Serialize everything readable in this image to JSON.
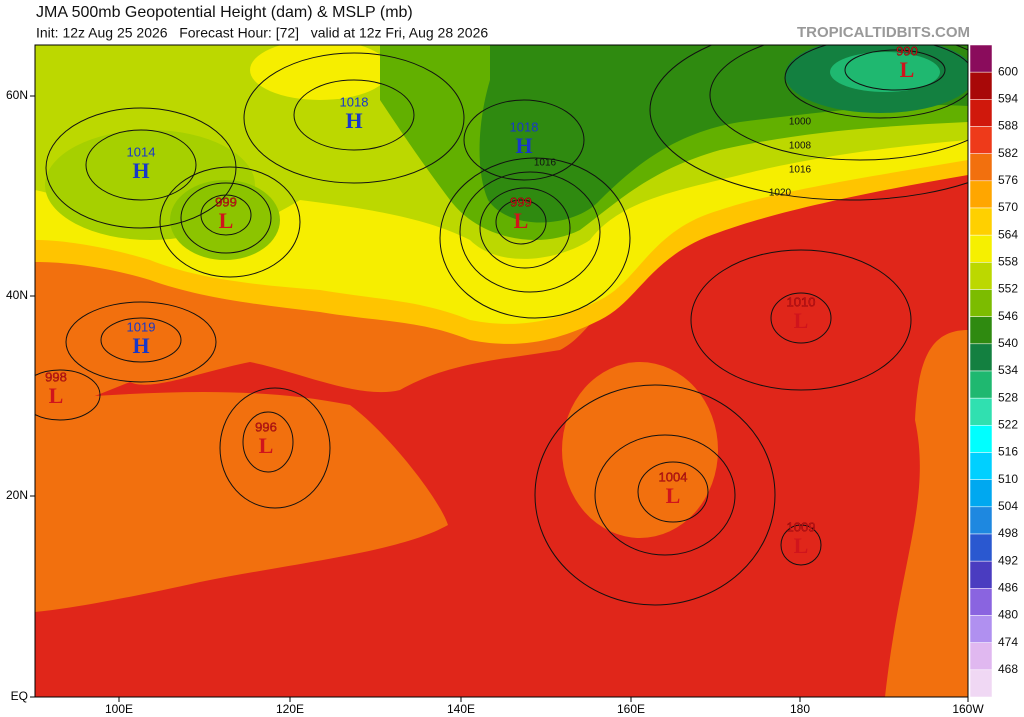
{
  "header": {
    "title": "JMA 500mb Geopotential Height (dam) & MSLP (mb)",
    "subtitle": "Init: 12z Aug 25 2026   Forecast Hour: [72]   valid at 12z Fri, Aug 28 2026",
    "source": "TROPICALTIDBITS.COM"
  },
  "map": {
    "lat_labels": [
      "60N",
      "40N",
      "20N",
      "EQ"
    ],
    "lon_labels": [
      "100E",
      "120E",
      "140E",
      "160E",
      "180",
      "160W"
    ],
    "centers": [
      {
        "symbol": "H",
        "pressure": 1018
      },
      {
        "symbol": "H",
        "pressure": 1014
      },
      {
        "symbol": "L",
        "pressure": 999
      },
      {
        "symbol": "H",
        "pressure": 1018
      },
      {
        "symbol": "L",
        "pressure": 999
      },
      {
        "symbol": "L",
        "pressure": 990
      },
      {
        "symbol": "H",
        "pressure": 1019
      },
      {
        "symbol": "L",
        "pressure": 998
      },
      {
        "symbol": "L",
        "pressure": 996
      },
      {
        "symbol": "L",
        "pressure": 1010
      },
      {
        "symbol": "L",
        "pressure": 1004
      },
      {
        "symbol": "L",
        "pressure": 1009
      }
    ],
    "contour_labels": [
      1000,
      1008,
      1016,
      1020,
      1016
    ]
  },
  "colorbar": {
    "labels": [
      600,
      594,
      588,
      582,
      576,
      570,
      564,
      558,
      552,
      546,
      540,
      534,
      528,
      522,
      516,
      510,
      504,
      498,
      492,
      486,
      480,
      474,
      468
    ],
    "colors": [
      "#8a0c5c",
      "#a80808",
      "#d0180c",
      "#ee3a1a",
      "#f2700e",
      "#ffa600",
      "#ffd000",
      "#f6f000",
      "#bcd800",
      "#7cbc00",
      "#2f8a10",
      "#138040",
      "#1fb870",
      "#30e0b0",
      "#00ffff",
      "#00d0ff",
      "#00a8f0",
      "#1e88e0",
      "#2a58d0",
      "#4a3cc0",
      "#8a64e0",
      "#b090f0",
      "#e0b8f0",
      "#f0d8f4"
    ]
  }
}
